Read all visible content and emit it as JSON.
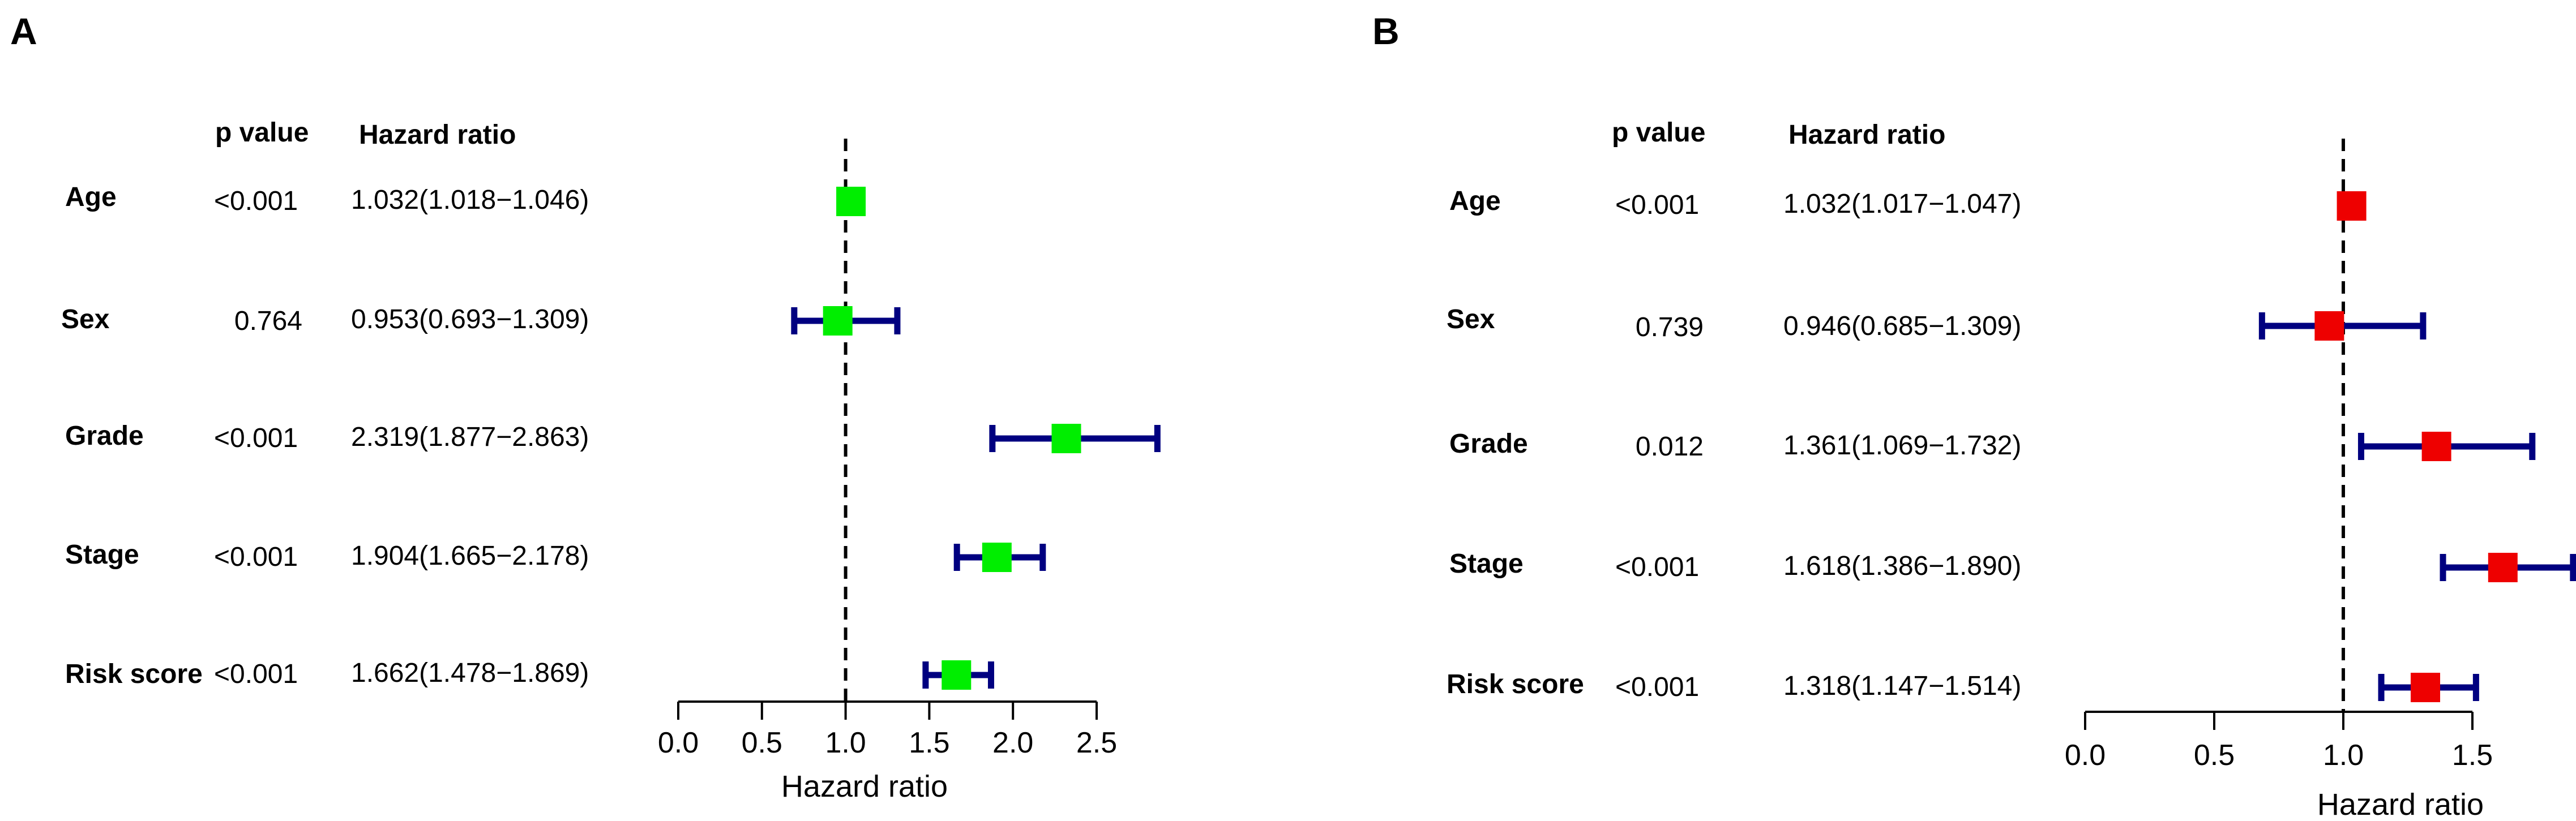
{
  "chart_data": [
    {
      "type": "forest",
      "panel": "A",
      "headers": {
        "pvalue": "p value",
        "hr": "Hazard ratio"
      },
      "xlabel": "Hazard ratio",
      "xlim": [
        0,
        2.5
      ],
      "xticks": [
        0.0,
        0.5,
        1.0,
        1.5,
        2.0,
        2.5
      ],
      "xtick_labels": [
        "0.0",
        "0.5",
        "1.0",
        "1.5",
        "2.0",
        "2.5"
      ],
      "reference_line": 1.0,
      "box_color": "#00ee00",
      "ci_color": "#000080",
      "rows": [
        {
          "variable": "Age",
          "pvalue": "<0.001",
          "hr_text": "1.032(1.018−1.046)",
          "hr": 1.032,
          "lower": 1.018,
          "upper": 1.046
        },
        {
          "variable": "Sex",
          "pvalue": "0.764",
          "hr_text": "0.953(0.693−1.309)",
          "hr": 0.953,
          "lower": 0.693,
          "upper": 1.309
        },
        {
          "variable": "Grade",
          "pvalue": "<0.001",
          "hr_text": "2.319(1.877−2.863)",
          "hr": 2.319,
          "lower": 1.877,
          "upper": 2.863
        },
        {
          "variable": "Stage",
          "pvalue": "<0.001",
          "hr_text": "1.904(1.665−2.178)",
          "hr": 1.904,
          "lower": 1.665,
          "upper": 2.178
        },
        {
          "variable": "Risk score",
          "pvalue": "<0.001",
          "hr_text": "1.662(1.478−1.869)",
          "hr": 1.662,
          "lower": 1.478,
          "upper": 1.869
        }
      ]
    },
    {
      "type": "forest",
      "panel": "B",
      "headers": {
        "pvalue": "p value",
        "hr": "Hazard ratio"
      },
      "xlabel": "Hazard ratio",
      "xlim": [
        0,
        1.5
      ],
      "xticks": [
        0.0,
        0.5,
        1.0,
        1.5
      ],
      "xtick_labels": [
        "0.0",
        "0.5",
        "1.0",
        "1.5"
      ],
      "reference_line": 1.0,
      "box_color": "#ee0000",
      "ci_color": "#000080",
      "rows": [
        {
          "variable": "Age",
          "pvalue": "<0.001",
          "hr_text": "1.032(1.017−1.047)",
          "hr": 1.032,
          "lower": 1.017,
          "upper": 1.047
        },
        {
          "variable": "Sex",
          "pvalue": "0.739",
          "hr_text": "0.946(0.685−1.309)",
          "hr": 0.946,
          "lower": 0.685,
          "upper": 1.309
        },
        {
          "variable": "Grade",
          "pvalue": "0.012",
          "hr_text": "1.361(1.069−1.732)",
          "hr": 1.361,
          "lower": 1.069,
          "upper": 1.732
        },
        {
          "variable": "Stage",
          "pvalue": "<0.001",
          "hr_text": "1.618(1.386−1.890)",
          "hr": 1.618,
          "lower": 1.386,
          "upper": 1.89
        },
        {
          "variable": "Risk score",
          "pvalue": "<0.001",
          "hr_text": "1.318(1.147−1.514)",
          "hr": 1.318,
          "lower": 1.147,
          "upper": 1.514
        }
      ]
    }
  ]
}
